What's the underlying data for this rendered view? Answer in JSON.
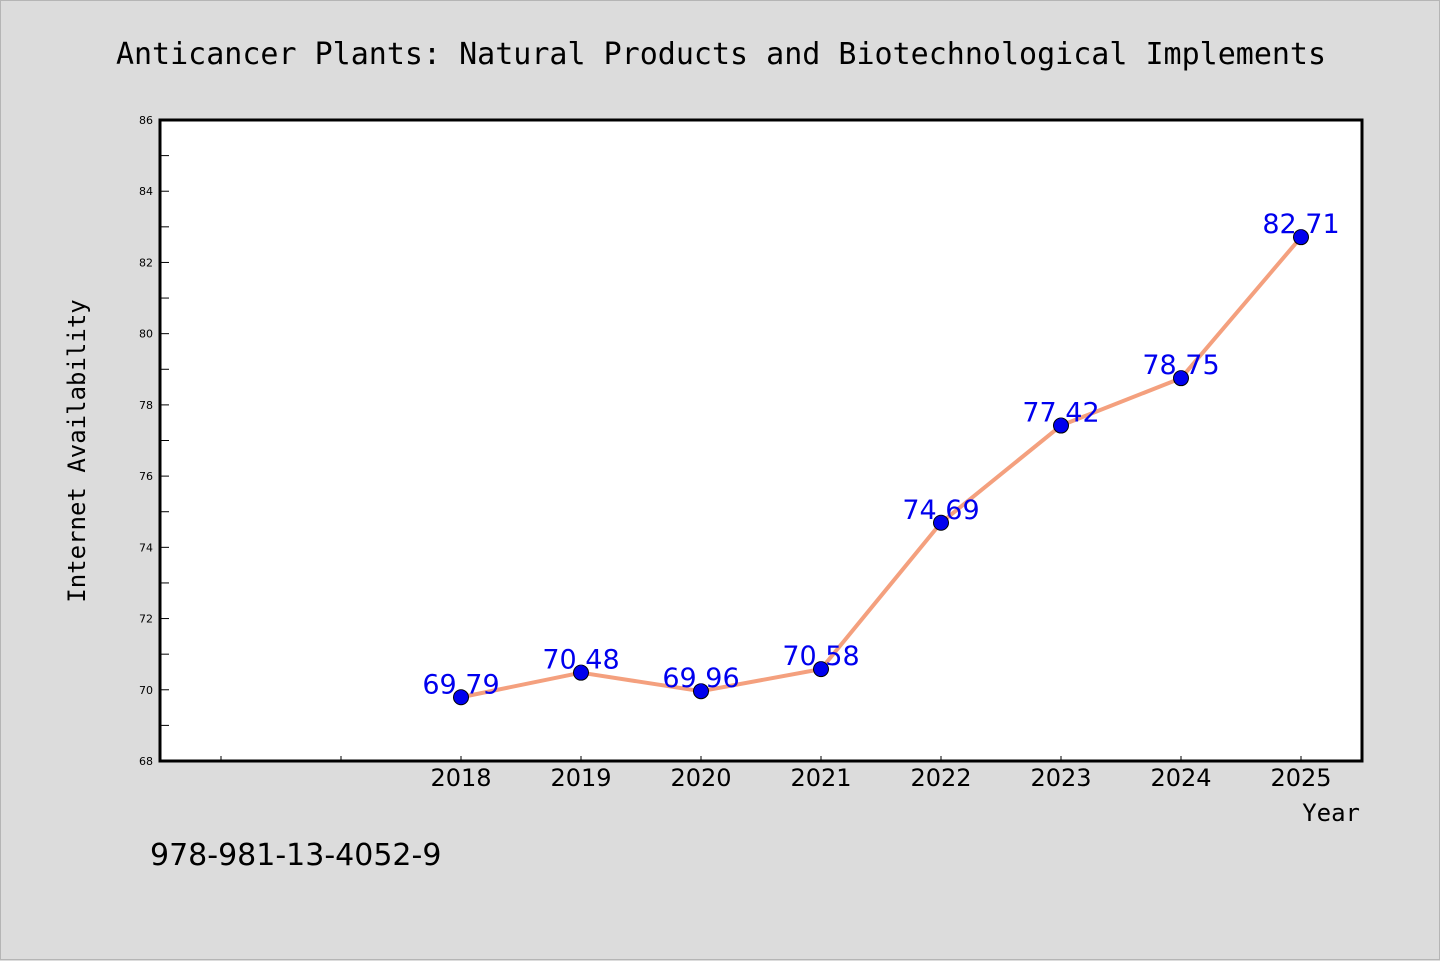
{
  "colors": {
    "background": "#dcdcdc",
    "plot_background": "#ffffff",
    "line": "#f4a07e",
    "marker": "#0000ee",
    "data_label": "#0000ee"
  },
  "footer": {
    "isbn": "978-981-13-4052-9"
  },
  "chart_data": {
    "type": "line",
    "title": "Anticancer Plants: Natural Products and Biotechnological Implements",
    "xlabel": "Year",
    "ylabel": "Internet Availability",
    "categories": [
      "2018",
      "2019",
      "2020",
      "2021",
      "2022",
      "2023",
      "2024",
      "2025"
    ],
    "ylim": [
      68,
      86
    ],
    "yticks": [
      "68",
      "70",
      "72",
      "74",
      "76",
      "78",
      "80",
      "82",
      "84",
      "86"
    ],
    "grid": false,
    "series": [
      {
        "values": [
          69.79,
          70.48,
          69.96,
          70.58,
          74.69,
          77.42,
          78.75,
          82.71
        ],
        "labels": [
          "69.79",
          "70.48",
          "69.96",
          "70.58",
          "74.69",
          "77.42",
          "78.75",
          "82.71"
        ]
      }
    ]
  }
}
